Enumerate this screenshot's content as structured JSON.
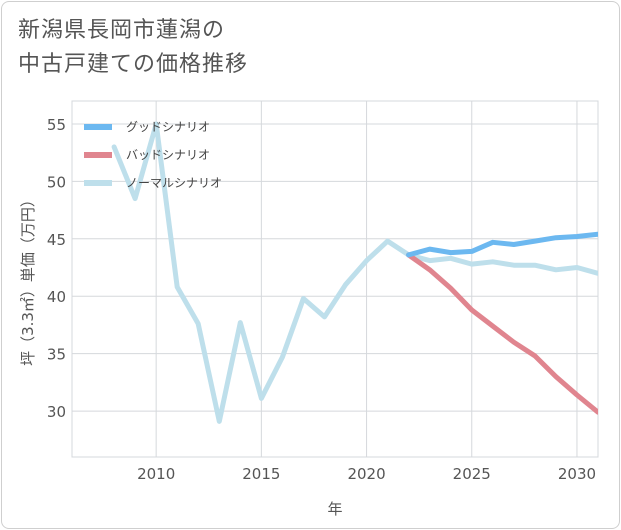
{
  "title": {
    "line1": "新潟県長岡市蓮潟の",
    "line2": "中古戸建ての価格推移"
  },
  "colors": {
    "good": "#6cb8f0",
    "bad": "#e0858f",
    "normal": "#bedfeb",
    "grid": "#d5d8dc",
    "axis_text": "#555555"
  },
  "chart_data": {
    "type": "line",
    "title": "新潟県長岡市蓮潟の中古戸建ての価格推移",
    "xlabel": "年",
    "ylabel": "坪（3.3㎡）単価（万円）",
    "xlim": [
      2006,
      2031
    ],
    "ylim": [
      26,
      57
    ],
    "x_ticks": [
      2010,
      2015,
      2020,
      2025,
      2030
    ],
    "y_ticks": [
      30,
      35,
      40,
      45,
      50,
      55
    ],
    "legend_position": "top-left",
    "series": [
      {
        "name": "グッドシナリオ",
        "color": "#6cb8f0",
        "x": [
          2022,
          2023,
          2024,
          2025,
          2026,
          2027,
          2028,
          2029,
          2030,
          2031
        ],
        "values": [
          43.6,
          44.1,
          43.8,
          43.9,
          44.7,
          44.5,
          44.8,
          45.1,
          45.2,
          45.4
        ]
      },
      {
        "name": "バッドシナリオ",
        "color": "#e0858f",
        "x": [
          2022,
          2023,
          2024,
          2025,
          2026,
          2027,
          2028,
          2029,
          2030,
          2031
        ],
        "values": [
          43.6,
          42.3,
          40.7,
          38.8,
          37.4,
          36.0,
          34.8,
          33.0,
          31.4,
          29.9
        ]
      },
      {
        "name": "ノーマルシナリオ",
        "color": "#bedfeb",
        "x": [
          2008,
          2009,
          2010,
          2011,
          2012,
          2013,
          2014,
          2015,
          2016,
          2017,
          2018,
          2019,
          2020,
          2021,
          2022,
          2023,
          2024,
          2025,
          2026,
          2027,
          2028,
          2029,
          2030,
          2031
        ],
        "values": [
          53.0,
          48.5,
          55.0,
          40.8,
          37.6,
          29.1,
          37.7,
          31.1,
          34.7,
          39.8,
          38.2,
          41.0,
          43.1,
          44.8,
          43.6,
          43.1,
          43.3,
          42.8,
          43.0,
          42.7,
          42.7,
          42.3,
          42.5,
          42.0
        ]
      }
    ]
  }
}
